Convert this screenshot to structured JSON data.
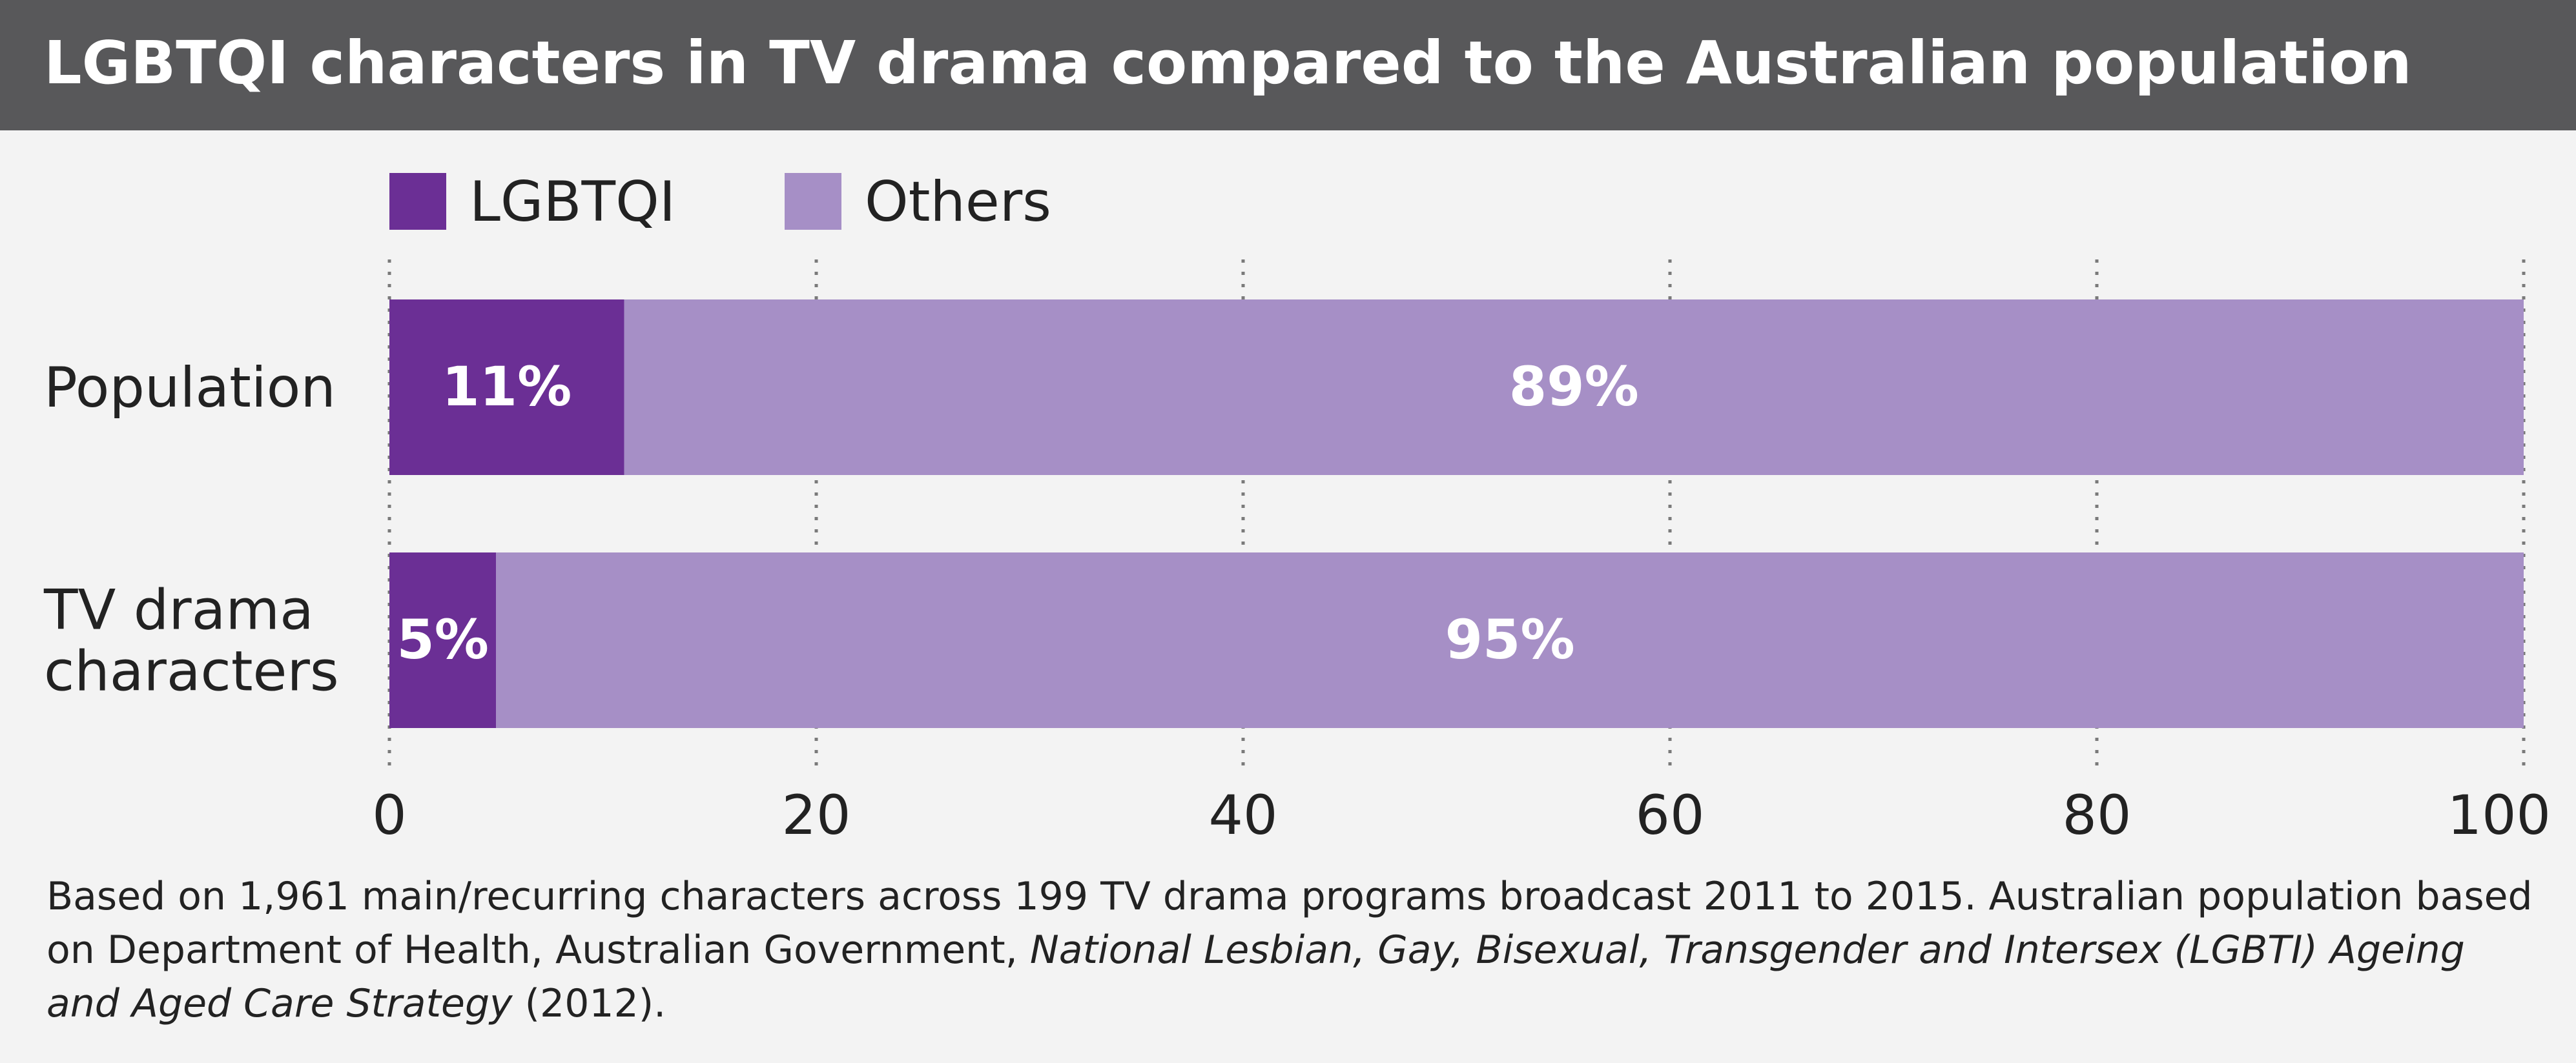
{
  "title": "LGBTQI characters in TV drama compared to the Australian population",
  "colors": {
    "title_bg": "#58585a",
    "lgbtqi": "#6b2f95",
    "others": "#a68fc6",
    "grid": "#7a7a7a",
    "background": "#f3f3f3"
  },
  "chart_data": {
    "type": "bar",
    "orientation": "horizontal",
    "stacked": true,
    "categories": [
      "Population",
      "TV drama characters"
    ],
    "category_lines": [
      [
        "Population"
      ],
      [
        "TV drama",
        "characters"
      ]
    ],
    "series": [
      {
        "name": "LGBTQI",
        "values": [
          11,
          5
        ],
        "labels": [
          "11%",
          "5%"
        ]
      },
      {
        "name": "Others",
        "values": [
          89,
          95
        ],
        "labels": [
          "89%",
          "95%"
        ]
      }
    ],
    "xlim": [
      0,
      100
    ],
    "xticks": [
      0,
      20,
      40,
      60,
      80,
      100
    ],
    "xtick_labels": [
      "0",
      "20",
      "40",
      "60",
      "80",
      "100"
    ],
    "grid": "vertical dotted",
    "legend_position": "top-left"
  },
  "caption": {
    "part1": "Based on 1,961 main/recurring characters across 199 TV drama programs broadcast 2011 to 2015. Australian population based on Department of Health, Australian Government, ",
    "italic": "National Lesbian, Gay, Bisexual, Transgender and Intersex (LGBTI) Ageing and Aged Care Strategy",
    "part2": " (2012)."
  }
}
